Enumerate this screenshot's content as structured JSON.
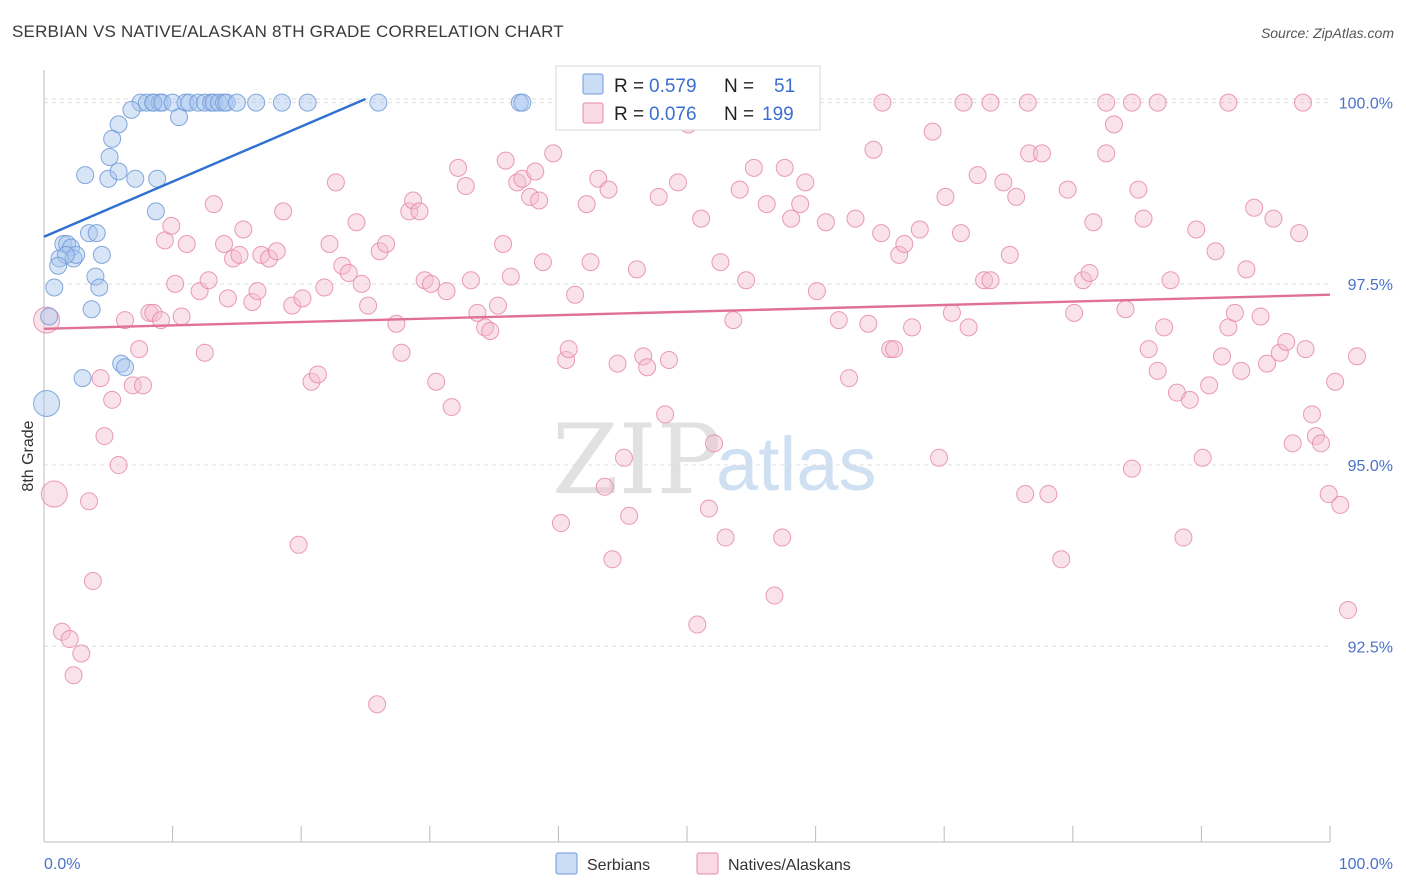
{
  "title": "SERBIAN VS NATIVE/ALASKAN 8TH GRADE CORRELATION CHART",
  "source": "Source: ZipAtlas.com",
  "watermark": {
    "zip": "ZIP",
    "atlas": "atlas"
  },
  "colors": {
    "serbians": "#6f9ad8",
    "serbians_fill": "#a9c5ee",
    "natives": "#e689a8",
    "natives_fill": "#f5bfd0",
    "serbians_line": "#2f6fd0",
    "natives_line": "#e0709a",
    "tick": "#4a72c8",
    "grid": "#dddddd"
  },
  "stats": {
    "r_label": "R =",
    "n_label": "N =",
    "serbians": {
      "r": "0.579",
      "n": "51"
    },
    "natives": {
      "r": "0.076",
      "n": "199"
    }
  },
  "chart_data": {
    "type": "scatter",
    "title": "SERBIAN VS NATIVE/ALASKAN 8TH GRADE CORRELATION CHART",
    "xlabel": "",
    "ylabel": "8th Grade",
    "xlim": [
      0,
      100
    ],
    "ylim": [
      89.8,
      100.45
    ],
    "x_tick_labels": [
      "0.0%",
      "100.0%"
    ],
    "y_ticks": [
      92.5,
      95.0,
      97.5,
      100.0
    ],
    "y_tick_labels": [
      "92.5%",
      "95.0%",
      "97.5%",
      "100.0%"
    ],
    "grid": "horizontal dashed",
    "legend": "bottom-center",
    "series": [
      {
        "name": "Serbians",
        "r": 0.579,
        "n": 51,
        "trend": {
          "x": [
            0,
            25
          ],
          "y": [
            98.15,
            100.05
          ]
        },
        "points": [
          [
            7.5,
            100
          ],
          [
            8,
            100
          ],
          [
            8.5,
            100
          ],
          [
            9,
            100
          ],
          [
            8.5,
            100
          ],
          [
            9.2,
            100
          ],
          [
            10,
            100
          ],
          [
            11,
            100
          ],
          [
            11.3,
            100
          ],
          [
            12,
            100
          ],
          [
            12.5,
            100
          ],
          [
            13,
            100
          ],
          [
            13.2,
            100
          ],
          [
            13.6,
            100
          ],
          [
            14,
            100
          ],
          [
            14.2,
            100
          ],
          [
            15,
            100
          ],
          [
            16.5,
            100
          ],
          [
            18.5,
            100
          ],
          [
            20.5,
            100
          ],
          [
            26,
            100
          ],
          [
            37,
            100
          ],
          [
            37.2,
            100
          ],
          [
            6.8,
            99.9
          ],
          [
            10.5,
            99.8
          ],
          [
            5.8,
            99.7
          ],
          [
            5.3,
            99.5
          ],
          [
            5.1,
            99.25
          ],
          [
            3.2,
            99
          ],
          [
            5,
            98.95
          ],
          [
            5.8,
            99.05
          ],
          [
            7.1,
            98.95
          ],
          [
            8.8,
            98.95
          ],
          [
            8.7,
            98.5
          ],
          [
            3.5,
            98.2
          ],
          [
            4.1,
            98.2
          ],
          [
            1.5,
            98.05
          ],
          [
            1.8,
            98.05
          ],
          [
            2.1,
            98
          ],
          [
            1.2,
            97.85
          ],
          [
            2.3,
            97.85
          ],
          [
            2.5,
            97.9
          ],
          [
            4.5,
            97.9
          ],
          [
            1.7,
            97.9
          ],
          [
            1.1,
            97.75
          ],
          [
            4,
            97.6
          ],
          [
            4.3,
            97.45
          ],
          [
            0.8,
            97.45
          ],
          [
            3.7,
            97.15
          ],
          [
            0.4,
            97.05
          ],
          [
            6,
            96.4
          ],
          [
            6.3,
            96.35
          ],
          [
            3,
            96.2
          ],
          [
            0.2,
            95.85,
            "large"
          ]
        ]
      },
      {
        "name": "Natives/Alaskans",
        "r": 0.076,
        "n": 199,
        "trend": {
          "x": [
            0,
            100
          ],
          "y": [
            96.88,
            97.35
          ]
        },
        "points": [
          [
            0.2,
            97,
            "large"
          ],
          [
            0.8,
            94.6,
            "large"
          ],
          [
            1.4,
            92.7
          ],
          [
            2,
            92.6
          ],
          [
            2.3,
            92.1
          ],
          [
            2.9,
            92.4
          ],
          [
            3.5,
            94.5
          ],
          [
            3.8,
            93.4
          ],
          [
            4.4,
            96.2
          ],
          [
            4.7,
            95.4
          ],
          [
            5.3,
            95.9
          ],
          [
            5.8,
            95
          ],
          [
            6.3,
            97
          ],
          [
            6.9,
            96.1
          ],
          [
            7.4,
            96.6
          ],
          [
            7.7,
            96.1
          ],
          [
            8.2,
            97.1
          ],
          [
            8.5,
            97.1
          ],
          [
            9.1,
            97
          ],
          [
            9.4,
            98.1
          ],
          [
            9.9,
            98.3
          ],
          [
            10.2,
            97.5
          ],
          [
            10.7,
            97.05
          ],
          [
            11.1,
            98.05
          ],
          [
            12.1,
            97.4
          ],
          [
            12.5,
            96.55
          ],
          [
            12.8,
            97.55
          ],
          [
            13.2,
            98.6
          ],
          [
            14,
            98.05
          ],
          [
            14.3,
            97.3
          ],
          [
            14.7,
            97.85
          ],
          [
            15.2,
            97.9
          ],
          [
            15.5,
            98.25
          ],
          [
            16.2,
            97.25
          ],
          [
            16.6,
            97.4
          ],
          [
            16.9,
            97.9
          ],
          [
            17.5,
            97.85
          ],
          [
            18.1,
            97.95
          ],
          [
            18.6,
            98.5
          ],
          [
            19.3,
            97.2
          ],
          [
            19.8,
            93.9
          ],
          [
            20.1,
            97.3
          ],
          [
            20.8,
            96.15
          ],
          [
            21.3,
            96.25
          ],
          [
            21.8,
            97.45
          ],
          [
            22.2,
            98.05
          ],
          [
            22.7,
            98.9
          ],
          [
            23.2,
            97.75
          ],
          [
            23.7,
            97.65
          ],
          [
            24.3,
            98.35
          ],
          [
            24.7,
            97.5
          ],
          [
            25.2,
            97.2
          ],
          [
            25.9,
            91.7
          ],
          [
            26.1,
            97.95
          ],
          [
            26.6,
            98.05
          ],
          [
            27.4,
            96.95
          ],
          [
            27.8,
            96.55
          ],
          [
            28.4,
            98.5
          ],
          [
            28.7,
            98.65
          ],
          [
            29.2,
            98.5
          ],
          [
            29.6,
            97.55
          ],
          [
            30.1,
            97.5
          ],
          [
            30.5,
            96.15
          ],
          [
            31.3,
            97.4
          ],
          [
            31.7,
            95.8
          ],
          [
            32.2,
            99.1
          ],
          [
            32.8,
            98.85
          ],
          [
            33.2,
            97.55
          ],
          [
            33.7,
            97.1
          ],
          [
            34.3,
            96.9
          ],
          [
            34.7,
            96.85
          ],
          [
            35.3,
            97.2
          ],
          [
            35.7,
            98.05
          ],
          [
            35.9,
            99.2
          ],
          [
            36.3,
            97.6
          ],
          [
            36.8,
            98.9
          ],
          [
            37.2,
            98.95
          ],
          [
            37.8,
            98.7
          ],
          [
            38.2,
            99.05
          ],
          [
            38.5,
            98.65
          ],
          [
            38.8,
            97.8
          ],
          [
            39.6,
            99.3
          ],
          [
            40.2,
            94.2
          ],
          [
            40.6,
            96.45
          ],
          [
            40.8,
            96.6
          ],
          [
            41.3,
            97.35
          ],
          [
            42.2,
            98.6
          ],
          [
            42.5,
            97.8
          ],
          [
            43.1,
            98.95
          ],
          [
            43.6,
            94.7
          ],
          [
            43.9,
            98.8
          ],
          [
            44.2,
            93.7
          ],
          [
            44.6,
            96.4
          ],
          [
            45.1,
            95.1
          ],
          [
            45.5,
            94.3
          ],
          [
            46.1,
            97.7
          ],
          [
            46.6,
            96.5
          ],
          [
            46.9,
            96.35
          ],
          [
            47.8,
            98.7
          ],
          [
            48.3,
            95.7
          ],
          [
            48.6,
            96.45
          ],
          [
            49.3,
            98.9
          ],
          [
            50.1,
            99.7
          ],
          [
            50.8,
            92.8
          ],
          [
            51.1,
            98.4
          ],
          [
            51.7,
            94.4
          ],
          [
            52.1,
            95.3
          ],
          [
            52.6,
            97.8
          ],
          [
            53,
            94
          ],
          [
            53.6,
            97
          ],
          [
            54.1,
            98.8
          ],
          [
            54.6,
            97.55
          ],
          [
            55.2,
            99.1
          ],
          [
            56.2,
            98.6
          ],
          [
            56.8,
            93.2
          ],
          [
            57.4,
            94
          ],
          [
            57.6,
            99.1
          ],
          [
            58.1,
            98.4
          ],
          [
            58.8,
            98.6
          ],
          [
            59.2,
            98.9
          ],
          [
            60.1,
            97.4
          ],
          [
            60.8,
            98.35
          ],
          [
            61.8,
            97
          ],
          [
            62.6,
            96.2
          ],
          [
            63.1,
            98.4
          ],
          [
            64.1,
            96.95
          ],
          [
            64.5,
            99.35
          ],
          [
            65.1,
            98.2
          ],
          [
            65.8,
            96.6
          ],
          [
            66.1,
            96.6
          ],
          [
            66.5,
            97.9
          ],
          [
            66.9,
            98.05
          ],
          [
            67.5,
            96.9
          ],
          [
            68.1,
            98.25
          ],
          [
            69.1,
            99.6
          ],
          [
            69.6,
            95.1
          ],
          [
            70.1,
            98.7
          ],
          [
            70.6,
            97.1
          ],
          [
            71.3,
            98.2
          ],
          [
            71.9,
            96.9
          ],
          [
            72.6,
            99
          ],
          [
            73.1,
            97.55
          ],
          [
            73.6,
            97.55
          ],
          [
            74.6,
            98.9
          ],
          [
            75.1,
            97.9
          ],
          [
            75.6,
            98.7
          ],
          [
            76.3,
            94.6
          ],
          [
            76.6,
            99.3
          ],
          [
            77.6,
            99.3
          ],
          [
            78.1,
            94.6
          ],
          [
            79.1,
            93.7
          ],
          [
            79.6,
            98.8
          ],
          [
            80.1,
            97.1
          ],
          [
            80.8,
            97.55
          ],
          [
            81.3,
            97.65
          ],
          [
            81.6,
            98.35
          ],
          [
            82.6,
            99.3
          ],
          [
            83.2,
            99.7
          ],
          [
            84.1,
            97.15
          ],
          [
            84.6,
            94.95
          ],
          [
            85.1,
            98.8
          ],
          [
            85.5,
            98.4
          ],
          [
            85.9,
            96.6
          ],
          [
            86.6,
            96.3
          ],
          [
            87.1,
            96.9
          ],
          [
            87.6,
            97.55
          ],
          [
            88.1,
            96
          ],
          [
            88.6,
            94
          ],
          [
            89.1,
            95.9
          ],
          [
            89.6,
            98.25
          ],
          [
            90.1,
            95.1
          ],
          [
            90.6,
            96.1
          ],
          [
            91.1,
            97.95
          ],
          [
            91.6,
            96.5
          ],
          [
            92.1,
            96.9
          ],
          [
            92.6,
            97.1
          ],
          [
            93.1,
            96.3
          ],
          [
            93.5,
            97.7
          ],
          [
            94.1,
            98.55
          ],
          [
            94.6,
            97.05
          ],
          [
            95.1,
            96.4
          ],
          [
            95.6,
            98.4
          ],
          [
            96.1,
            96.55
          ],
          [
            96.6,
            96.7
          ],
          [
            97.1,
            95.3
          ],
          [
            97.6,
            98.2
          ],
          [
            98.1,
            96.6
          ],
          [
            98.6,
            95.7
          ],
          [
            98.9,
            95.4
          ],
          [
            99.3,
            95.3
          ],
          [
            99.9,
            94.6
          ],
          [
            100.4,
            96.15
          ],
          [
            100.8,
            94.45
          ],
          [
            101.4,
            93
          ],
          [
            102.1,
            96.5
          ],
          [
            76.5,
            100
          ],
          [
            71.5,
            100
          ],
          [
            73.6,
            100
          ],
          [
            82.6,
            100
          ],
          [
            84.6,
            100
          ],
          [
            86.6,
            100
          ],
          [
            92.1,
            100
          ],
          [
            97.9,
            100
          ],
          [
            65.2,
            100
          ]
        ]
      }
    ]
  },
  "legend": {
    "serbians": "Serbians",
    "natives": "Natives/Alaskans"
  }
}
